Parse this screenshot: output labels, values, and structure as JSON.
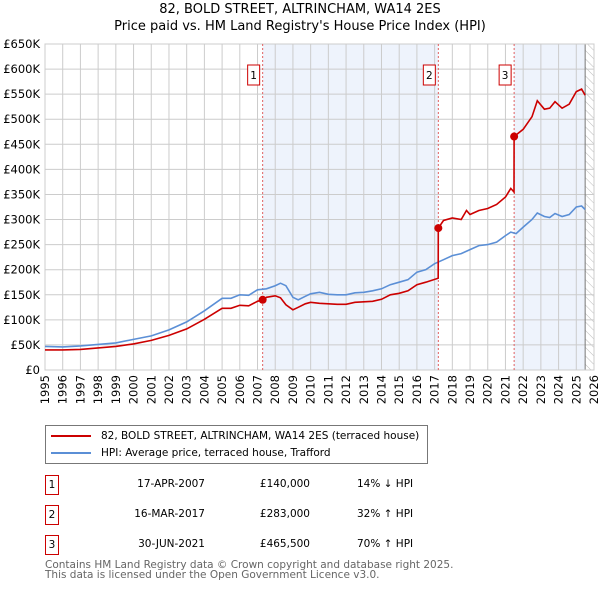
{
  "header": {
    "title": "82, BOLD STREET, ALTRINCHAM, WA14 2ES",
    "subtitle": "Price paid vs. HM Land Registry's House Price Index (HPI)"
  },
  "legend": {
    "items": [
      {
        "label": "82, BOLD STREET, ALTRINCHAM, WA14 2ES (terraced house)",
        "color": "#cc0000"
      },
      {
        "label": "HPI: Average price, terraced house, Trafford",
        "color": "#5b8fd6"
      }
    ]
  },
  "sales": [
    {
      "num": "1",
      "date": "17-APR-2007",
      "price": "£140,000",
      "hpi": "14% ↓ HPI"
    },
    {
      "num": "2",
      "date": "16-MAR-2017",
      "price": "£283,000",
      "hpi": "32% ↑ HPI"
    },
    {
      "num": "3",
      "date": "30-JUN-2021",
      "price": "£465,500",
      "hpi": "70% ↑ HPI"
    }
  ],
  "footer": {
    "line1": "Contains HM Land Registry data © Crown copyright and database right 2025.",
    "line2": "This data is licensed under the Open Government Licence v3.0."
  },
  "chart_data": {
    "type": "line",
    "title": "82, BOLD STREET, ALTRINCHAM, WA14 2ES",
    "subtitle": "Price paid vs. HM Land Registry's House Price Index (HPI)",
    "xlim": [
      1995,
      2026
    ],
    "ylim": [
      0,
      650000
    ],
    "grid": true,
    "legend_position": "bottom",
    "x_ticks": [
      "1995",
      "1996",
      "1997",
      "1998",
      "1999",
      "2000",
      "2001",
      "2002",
      "2003",
      "2004",
      "2005",
      "2006",
      "2007",
      "2008",
      "2009",
      "2010",
      "2011",
      "2012",
      "2013",
      "2014",
      "2015",
      "2016",
      "2017",
      "2018",
      "2019",
      "2020",
      "2021",
      "2022",
      "2023",
      "2024",
      "2025",
      "2026"
    ],
    "y_ticks": [
      "£0",
      "£50K",
      "£100K",
      "£150K",
      "£200K",
      "£250K",
      "£300K",
      "£350K",
      "£400K",
      "£450K",
      "£500K",
      "£550K",
      "£600K",
      "£650K"
    ],
    "sale_markers": [
      {
        "label": "1",
        "x": 2007.29,
        "y": 140000
      },
      {
        "label": "2",
        "x": 2017.21,
        "y": 283000
      },
      {
        "label": "3",
        "x": 2021.49,
        "y": 465500
      }
    ],
    "shaded_ranges": [
      [
        2007.29,
        2017.21
      ],
      [
        2021.49,
        2025.5
      ]
    ],
    "hatched_from": 2025.5,
    "series": [
      {
        "name": "HPI: Average price, terraced house, Trafford",
        "color": "#5b8fd6",
        "x": [
          1995,
          1996,
          1997,
          1998,
          1999,
          2000,
          2001,
          2002,
          2003,
          2004,
          2005,
          2005.5,
          2006,
          2006.5,
          2007,
          2007.5,
          2008,
          2008.3,
          2008.6,
          2009,
          2009.3,
          2009.7,
          2010,
          2010.5,
          2011,
          2011.5,
          2012,
          2012.5,
          2013,
          2013.5,
          2014,
          2014.5,
          2015,
          2015.5,
          2016,
          2016.5,
          2017,
          2017.5,
          2018,
          2018.5,
          2019,
          2019.5,
          2020,
          2020.5,
          2021,
          2021.3,
          2021.6,
          2022,
          2022.5,
          2022.8,
          2023.2,
          2023.5,
          2023.8,
          2024.2,
          2024.6,
          2025,
          2025.3,
          2025.5
        ],
        "y": [
          47000,
          46000,
          48000,
          51000,
          54000,
          61000,
          68000,
          80000,
          96000,
          118000,
          143000,
          143000,
          150000,
          149000,
          160000,
          162000,
          168000,
          173000,
          168000,
          145000,
          140000,
          147000,
          152000,
          155000,
          151000,
          150000,
          150000,
          154000,
          155000,
          158000,
          162000,
          170000,
          175000,
          180000,
          195000,
          200000,
          212000,
          220000,
          228000,
          232000,
          240000,
          248000,
          250000,
          255000,
          268000,
          275000,
          272000,
          285000,
          300000,
          313000,
          306000,
          304000,
          312000,
          306000,
          310000,
          325000,
          327000,
          320000
        ]
      },
      {
        "name": "82, BOLD STREET, ALTRINCHAM, WA14 2ES (terraced house)",
        "color": "#cc0000",
        "x": [
          1995,
          1996,
          1997,
          1998,
          1999,
          2000,
          2001,
          2002,
          2003,
          2004,
          2005,
          2005.5,
          2006,
          2006.5,
          2007,
          2007.29,
          2007.5,
          2008,
          2008.3,
          2008.6,
          2009,
          2009.3,
          2009.7,
          2010,
          2010.5,
          2011,
          2011.5,
          2012,
          2012.5,
          2013,
          2013.5,
          2014,
          2014.5,
          2015,
          2015.5,
          2016,
          2016.5,
          2017.2,
          2017.21,
          2017.5,
          2018,
          2018.5,
          2018.8,
          2019,
          2019.5,
          2020,
          2020.5,
          2021,
          2021.3,
          2021.48,
          2021.49,
          2022,
          2022.5,
          2022.8,
          2023.2,
          2023.5,
          2023.8,
          2024.2,
          2024.6,
          2025,
          2025.3,
          2025.5
        ],
        "y": [
          40000,
          40000,
          41000,
          44000,
          47000,
          52000,
          59000,
          69000,
          82000,
          101000,
          123000,
          123000,
          129000,
          128000,
          137000,
          140000,
          145000,
          148000,
          144000,
          130000,
          120000,
          125000,
          132000,
          135000,
          133000,
          132000,
          131000,
          131000,
          135000,
          136000,
          137000,
          141000,
          150000,
          153000,
          158000,
          170000,
          175000,
          183000,
          283000,
          298000,
          303000,
          300000,
          318000,
          310000,
          318000,
          322000,
          330000,
          345000,
          362000,
          355000,
          465500,
          480000,
          505000,
          537000,
          520000,
          522000,
          535000,
          522000,
          530000,
          555000,
          560000,
          548000
        ]
      }
    ]
  }
}
